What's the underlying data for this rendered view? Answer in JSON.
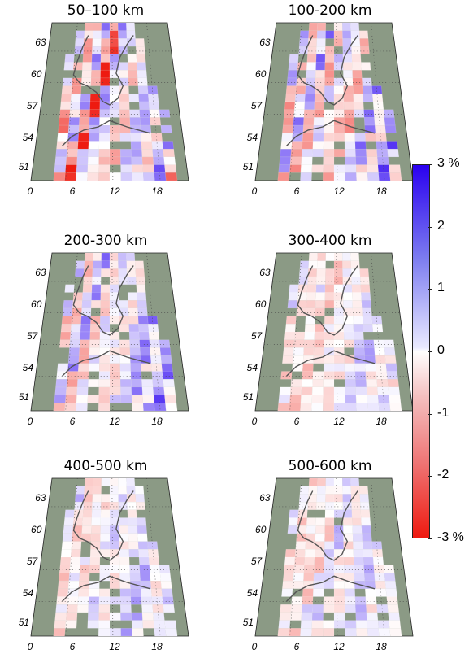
{
  "panels": [
    {
      "title": "50–100 km",
      "pattern": [
        0.1,
        -0.6,
        -0.9,
        0.2,
        0.5,
        0.9,
        -0.4,
        -1.2,
        0.3,
        1.4,
        -0.8,
        -2.6,
        1.2,
        0.4
      ]
    },
    {
      "title": "100-200 km",
      "pattern": [
        -0.3,
        -0.9,
        -1.3,
        -0.2,
        0.6,
        1.3,
        -0.8,
        -0.6,
        0.5,
        1.7,
        -0.6,
        -1.0,
        0.6,
        0.3
      ]
    },
    {
      "title": "200-300 km",
      "pattern": [
        0.0,
        -0.3,
        -0.5,
        0.4,
        0.8,
        1.1,
        -0.4,
        -0.5,
        0.7,
        1.6,
        -0.6,
        -0.5,
        0.4,
        0.1
      ]
    },
    {
      "title": "300-400 km",
      "pattern": [
        -0.1,
        -0.2,
        -0.3,
        0.3,
        0.5,
        0.7,
        -0.2,
        -0.4,
        -0.3,
        0.4,
        -0.5,
        -0.7,
        -0.2,
        0.1
      ]
    },
    {
      "title": "400-500 km",
      "pattern": [
        -0.1,
        -0.2,
        0.0,
        0.3,
        0.5,
        0.8,
        -0.2,
        -0.4,
        -0.2,
        0.2,
        -0.3,
        -0.2,
        0.2,
        0.5
      ]
    },
    {
      "title": "500-600 km",
      "pattern": [
        -0.2,
        -0.3,
        -0.1,
        0.3,
        0.5,
        0.6,
        -0.4,
        -0.3,
        -0.1,
        0.0,
        -0.3,
        -0.5,
        0.4,
        0.6
      ]
    }
  ],
  "lat_labels": [
    "63",
    "60",
    "57",
    "54",
    "51"
  ],
  "lon_labels": [
    "0",
    "6",
    "12",
    "18"
  ],
  "colorbar": {
    "ticks": [
      "3 %",
      "2",
      "1",
      "0",
      "-1",
      "-2",
      "-3 %"
    ],
    "range": [
      -3,
      3
    ],
    "colors": {
      "positive": "#2a00f0",
      "zero": "#ffffff",
      "negative": "#ee1a10"
    }
  },
  "colors": {
    "ocean": "#8b9a85",
    "coast": "#555555",
    "grid": "#444444"
  }
}
